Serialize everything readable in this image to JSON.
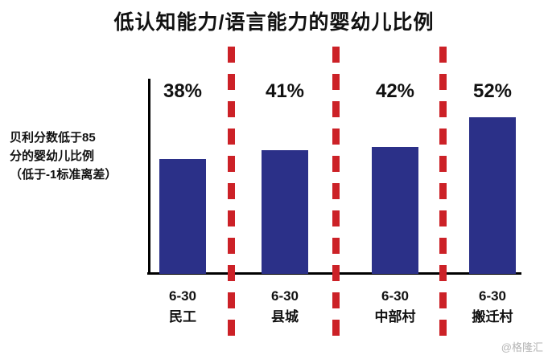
{
  "title": "低认知能力/语言能力的婴幼儿比例",
  "y_axis_label_lines": [
    "贝利分数低于85",
    "分的婴幼儿比例",
    "（低于-1标准离差）"
  ],
  "watermark": "@格隆汇",
  "colors": {
    "bar": "#2b3088",
    "separator": "#cc2127",
    "axis": "#000000",
    "watermark": "#b3b3b3"
  },
  "chart_data": {
    "type": "bar",
    "categories": [
      {
        "line1": "6-30",
        "line2": "民工"
      },
      {
        "line1": "6-30",
        "line2": "县城"
      },
      {
        "line1": "6-30",
        "line2": "中部村"
      },
      {
        "line1": "6-30",
        "line2": "搬迁村"
      }
    ],
    "values": [
      38,
      41,
      42,
      52
    ],
    "value_labels": [
      "38%",
      "41%",
      "42%",
      "52%"
    ],
    "title": "低认知能力/语言能力的婴幼儿比例",
    "xlabel": "",
    "ylabel": "贝利分数低于85分的婴幼儿比例（低于-1标准离差）",
    "unit": "%",
    "ylim": [
      0,
      65
    ],
    "grid": false,
    "legend": "none",
    "separators_note": "red dashed vertical lines separate the four groups"
  }
}
